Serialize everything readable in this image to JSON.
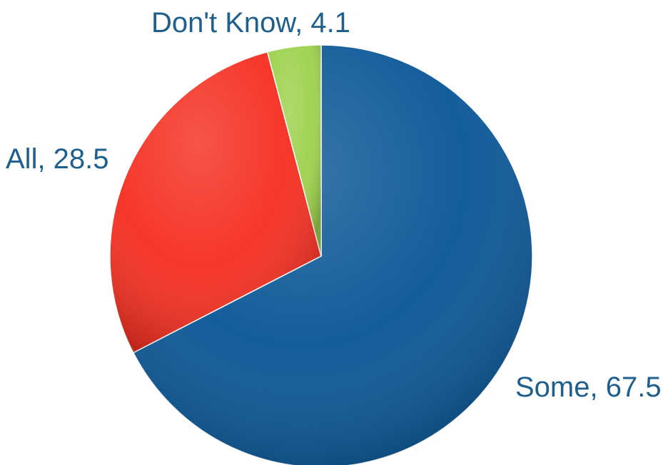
{
  "chart_data": {
    "type": "pie",
    "title": "",
    "slices": [
      {
        "label": "Some",
        "value": 67.5,
        "text": "Some, 67.5",
        "color": "#0a5797"
      },
      {
        "label": "All",
        "value": 28.5,
        "text": "All, 28.5",
        "color": "#f52f21"
      },
      {
        "label": "Don't Know",
        "value": 4.1,
        "text": "Don't Know, 4.1",
        "color": "#9ed14d"
      }
    ],
    "start_angle_deg": 0,
    "direction": "clockwise",
    "legend": "none",
    "label_color": "#1f5f8b"
  }
}
